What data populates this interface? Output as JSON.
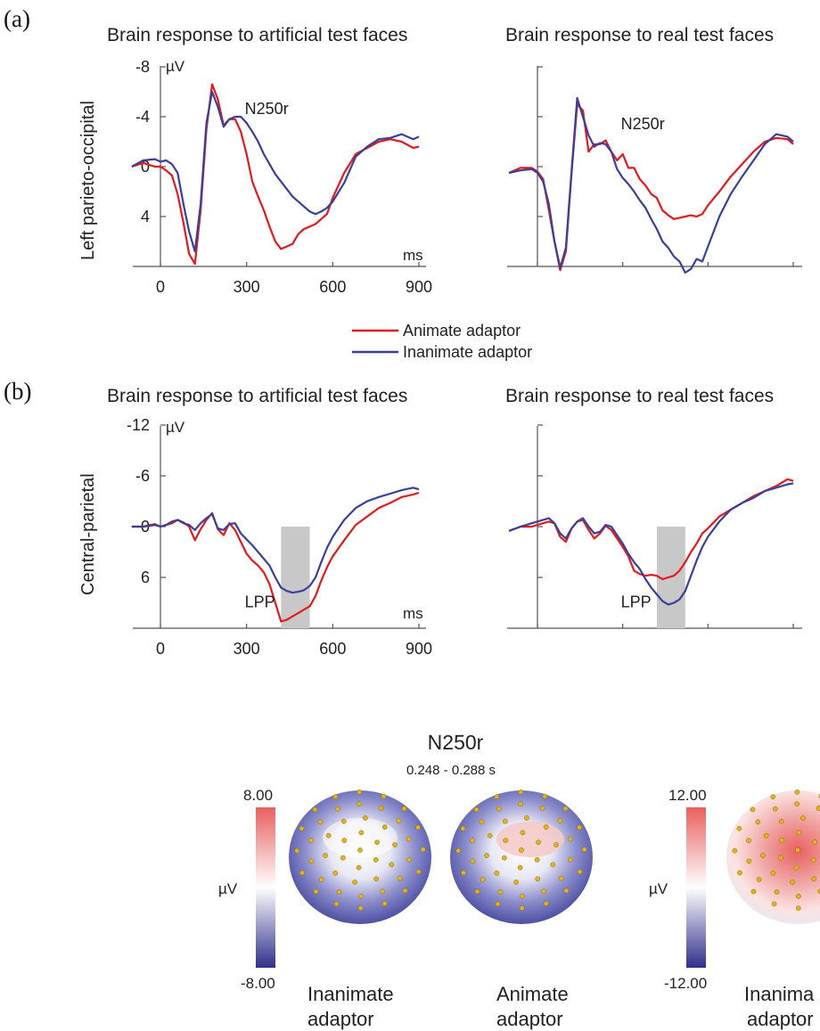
{
  "panel_labels": [
    "(a)",
    "(b)"
  ],
  "legend": [
    {
      "label": "Animate adaptor",
      "color": "#e31a1c"
    },
    {
      "label": "Inanimate adaptor",
      "color": "#3a3f9c"
    }
  ],
  "topomap": {
    "title": "N250r",
    "subtitle": "0.248 - 0.288 s",
    "colorbars": [
      {
        "max": "8.00",
        "min": "-8.00",
        "unit": "µV"
      },
      {
        "max": "12.00",
        "min": "-12.00",
        "unit": "µV"
      }
    ],
    "captions": [
      [
        "Inanimate",
        "adaptor"
      ],
      [
        "Animate",
        "adaptor"
      ],
      [
        "Inanima",
        "adaptor"
      ]
    ],
    "colors": {
      "positive": "#e8605f",
      "negative": "#2e2f8a",
      "neutral": "#ffffff"
    }
  },
  "chart_data": [
    {
      "type": "line",
      "title": "Brain response to artificial test faces",
      "ylabel": "Left parieto-occipital",
      "yunit": "µV",
      "xunit": "ms",
      "xlim": [
        -100,
        920
      ],
      "ylim": [
        -8,
        8
      ],
      "y_inverted": true,
      "xticks": [
        0,
        300,
        600,
        900
      ],
      "yticks": [
        -8,
        -4,
        0,
        4
      ],
      "ytick_labels": [
        "-8",
        "-4",
        "0",
        "4"
      ],
      "annotations": [
        {
          "text": "N250r",
          "x": 300,
          "y": -4.2
        }
      ],
      "series": [
        {
          "name": "Animate adaptor",
          "color": "#e31a1c",
          "x": [
            -100,
            -60,
            -20,
            0,
            20,
            40,
            60,
            80,
            100,
            120,
            140,
            160,
            180,
            200,
            220,
            240,
            260,
            280,
            300,
            320,
            340,
            360,
            380,
            400,
            420,
            440,
            460,
            480,
            500,
            520,
            540,
            560,
            580,
            600,
            640,
            680,
            720,
            760,
            800,
            840,
            880,
            900
          ],
          "y": [
            0,
            -0.3,
            0,
            0,
            0.3,
            0.7,
            2.2,
            4.5,
            7.0,
            7.8,
            3.5,
            -3.0,
            -6.6,
            -5.4,
            -3.3,
            -3.8,
            -3.8,
            -2.8,
            -1.0,
            1.2,
            2.4,
            3.5,
            4.8,
            6.0,
            6.6,
            6.4,
            6.2,
            5.4,
            5.0,
            4.8,
            4.6,
            4.2,
            3.8,
            2.5,
            0.5,
            -1.0,
            -1.5,
            -2.0,
            -2.2,
            -2.0,
            -1.5,
            -1.6
          ]
        },
        {
          "name": "Inanimate adaptor",
          "color": "#3a3f9c",
          "x": [
            -100,
            -60,
            -20,
            0,
            20,
            40,
            60,
            80,
            100,
            120,
            140,
            160,
            180,
            200,
            220,
            240,
            260,
            280,
            300,
            320,
            340,
            360,
            380,
            400,
            420,
            440,
            460,
            480,
            500,
            520,
            540,
            560,
            580,
            600,
            640,
            680,
            720,
            760,
            800,
            840,
            880,
            900
          ],
          "y": [
            0,
            -0.5,
            -0.6,
            -0.4,
            -0.5,
            -0.2,
            0.5,
            3.0,
            5.2,
            6.8,
            3.0,
            -3.5,
            -6.0,
            -4.8,
            -3.2,
            -3.8,
            -4.0,
            -4.0,
            -3.5,
            -2.8,
            -2.0,
            -1.0,
            -0.2,
            0.6,
            1.2,
            1.8,
            2.4,
            2.8,
            3.2,
            3.6,
            3.8,
            3.6,
            3.3,
            2.8,
            1.3,
            -0.8,
            -1.6,
            -2.2,
            -2.3,
            -2.6,
            -2.2,
            -2.4
          ]
        }
      ]
    },
    {
      "type": "line",
      "title": "Brain response to real test faces",
      "ylabel": "",
      "xlim": [
        -100,
        920
      ],
      "ylim": [
        -8,
        8
      ],
      "y_inverted": true,
      "annotations": [
        {
          "text": "N250r",
          "x": 300,
          "y": -3.0
        }
      ],
      "series": [
        {
          "name": "Animate adaptor",
          "color": "#e31a1c",
          "x": [
            -100,
            -60,
            -20,
            0,
            20,
            40,
            60,
            80,
            100,
            120,
            140,
            160,
            180,
            200,
            220,
            240,
            260,
            280,
            300,
            320,
            340,
            360,
            380,
            400,
            420,
            440,
            460,
            480,
            500,
            520,
            540,
            560,
            580,
            600,
            640,
            680,
            720,
            760,
            800,
            840,
            880,
            900
          ],
          "y": [
            0.5,
            0.1,
            0.1,
            0.4,
            1.0,
            3.5,
            6.0,
            8.3,
            6.8,
            0.5,
            -5.0,
            -4.5,
            -1.2,
            -1.8,
            -1.8,
            -2.1,
            -1.2,
            -0.5,
            -1.0,
            0.1,
            0.1,
            1.0,
            1.5,
            2.2,
            2.5,
            3.5,
            3.9,
            4.2,
            4.1,
            4.0,
            3.9,
            4.0,
            3.8,
            3.1,
            2.0,
            0.8,
            -0.2,
            -1.2,
            -2.0,
            -2.3,
            -2.2,
            -1.8
          ]
        },
        {
          "name": "Inanimate adaptor",
          "color": "#3a3f9c",
          "x": [
            -100,
            -60,
            -20,
            0,
            20,
            40,
            60,
            80,
            100,
            120,
            140,
            160,
            180,
            200,
            220,
            240,
            260,
            280,
            300,
            320,
            340,
            360,
            380,
            400,
            420,
            440,
            460,
            480,
            500,
            520,
            540,
            560,
            580,
            600,
            640,
            680,
            720,
            760,
            800,
            840,
            880,
            900
          ],
          "y": [
            0.5,
            0.3,
            0.2,
            0.5,
            1.2,
            3.0,
            6.0,
            8.1,
            6.5,
            0.3,
            -5.5,
            -4.0,
            -2.5,
            -1.6,
            -1.9,
            -1.8,
            -1.2,
            0.2,
            0.9,
            1.4,
            2.0,
            2.7,
            3.3,
            4.2,
            5.0,
            6.0,
            6.5,
            7.2,
            7.6,
            8.5,
            8.2,
            7.4,
            7.6,
            6.4,
            4.0,
            2.2,
            0.8,
            -0.5,
            -1.8,
            -2.6,
            -2.4,
            -2.0
          ]
        }
      ]
    },
    {
      "type": "line",
      "title": "Brain response to artificial test faces",
      "ylabel": "Central-parietal",
      "yunit": "µV",
      "xunit": "ms",
      "xlim": [
        -100,
        920
      ],
      "ylim": [
        -12,
        10
      ],
      "y_inverted": true,
      "xticks": [
        0,
        300,
        600,
        900
      ],
      "yticks": [
        -12,
        -6,
        0,
        6
      ],
      "ytick_labels": [
        "-12",
        "-6",
        "0",
        "6"
      ],
      "shaded_window_ms": [
        420,
        520
      ],
      "annotations": [
        {
          "text": "LPP",
          "x": 300,
          "y": 9.5
        }
      ],
      "series": [
        {
          "name": "Animate adaptor",
          "color": "#e31a1c",
          "x": [
            -100,
            -60,
            -20,
            0,
            20,
            40,
            60,
            80,
            100,
            120,
            140,
            160,
            180,
            200,
            220,
            240,
            260,
            280,
            300,
            320,
            340,
            360,
            380,
            400,
            420,
            440,
            460,
            480,
            500,
            520,
            540,
            560,
            580,
            600,
            640,
            680,
            720,
            760,
            800,
            840,
            880,
            900
          ],
          "y": [
            0,
            0,
            -0.3,
            0,
            -0.2,
            -0.4,
            -0.8,
            -0.5,
            0,
            1.6,
            0.3,
            -0.8,
            -1.6,
            0.3,
            1.0,
            -0.4,
            0.4,
            1.8,
            3.2,
            4.0,
            4.6,
            5.4,
            6.8,
            9.0,
            11.2,
            11.0,
            10.6,
            10.2,
            9.8,
            9.4,
            8.2,
            6.4,
            4.8,
            3.5,
            1.6,
            -0.2,
            -1.2,
            -2.2,
            -2.8,
            -3.5,
            -3.8,
            -4.0
          ]
        },
        {
          "name": "Inanimate adaptor",
          "color": "#3a3f9c",
          "x": [
            -100,
            -60,
            -20,
            0,
            20,
            40,
            60,
            80,
            100,
            120,
            140,
            160,
            180,
            200,
            220,
            240,
            260,
            280,
            300,
            320,
            340,
            360,
            380,
            400,
            420,
            440,
            460,
            480,
            500,
            520,
            540,
            560,
            580,
            600,
            640,
            680,
            720,
            760,
            800,
            840,
            880,
            900
          ],
          "y": [
            0,
            0,
            -0.2,
            0,
            -0.2,
            -0.6,
            -0.8,
            -0.4,
            -0.2,
            0.4,
            -0.4,
            -1.0,
            -1.5,
            0.2,
            0.4,
            -0.3,
            -0.4,
            0.8,
            1.5,
            2.2,
            3.0,
            3.8,
            4.6,
            6.0,
            7.2,
            7.6,
            7.8,
            7.7,
            7.5,
            7.0,
            6.0,
            4.2,
            2.5,
            1.2,
            -0.8,
            -2.2,
            -3.0,
            -3.5,
            -3.9,
            -4.3,
            -4.6,
            -4.4
          ]
        }
      ]
    },
    {
      "type": "line",
      "title": "Brain response to real test faces",
      "ylabel": "",
      "xlim": [
        -100,
        920
      ],
      "ylim": [
        -12,
        10
      ],
      "y_inverted": true,
      "shaded_window_ms": [
        420,
        520
      ],
      "annotations": [
        {
          "text": "LPP",
          "x": 300,
          "y": 9.5
        }
      ],
      "series": [
        {
          "name": "Animate adaptor",
          "color": "#e31a1c",
          "x": [
            -100,
            -60,
            -20,
            0,
            20,
            40,
            60,
            80,
            100,
            120,
            140,
            160,
            180,
            200,
            220,
            240,
            260,
            280,
            300,
            320,
            340,
            360,
            380,
            400,
            420,
            440,
            460,
            480,
            500,
            520,
            540,
            560,
            580,
            600,
            640,
            680,
            720,
            760,
            800,
            840,
            880,
            900
          ],
          "y": [
            0.5,
            0,
            0,
            -0.2,
            -0.4,
            -0.6,
            -0.4,
            1.2,
            1.8,
            0.2,
            -0.6,
            -0.8,
            0.4,
            1.4,
            0.8,
            -0.1,
            0.4,
            1.4,
            2.4,
            3.5,
            5.2,
            5.6,
            5.8,
            5.7,
            5.8,
            6.2,
            6.0,
            5.8,
            5.2,
            4.2,
            3.0,
            2.0,
            0.8,
            0.2,
            -1.2,
            -2.0,
            -2.8,
            -3.6,
            -4.2,
            -4.8,
            -5.6,
            -5.4
          ]
        },
        {
          "name": "Inanimate adaptor",
          "color": "#3a3f9c",
          "x": [
            -100,
            -60,
            -20,
            0,
            20,
            40,
            60,
            80,
            100,
            120,
            140,
            160,
            180,
            200,
            220,
            240,
            260,
            280,
            300,
            320,
            340,
            360,
            380,
            400,
            420,
            440,
            460,
            480,
            500,
            520,
            540,
            560,
            580,
            600,
            640,
            680,
            720,
            760,
            800,
            840,
            880,
            900
          ],
          "y": [
            0.5,
            0,
            -0.4,
            -0.6,
            -0.8,
            -1.0,
            -0.4,
            0.8,
            1.4,
            0.2,
            -0.6,
            -1.0,
            0,
            0.8,
            0.6,
            -0.2,
            0,
            1.0,
            2.0,
            3.2,
            4.2,
            5.0,
            6.2,
            7.2,
            8.0,
            8.8,
            9.2,
            9.0,
            8.6,
            7.6,
            5.8,
            4.0,
            2.4,
            1.2,
            -0.6,
            -2.0,
            -2.8,
            -3.4,
            -4.2,
            -4.6,
            -5.0,
            -5.1
          ]
        }
      ]
    }
  ]
}
